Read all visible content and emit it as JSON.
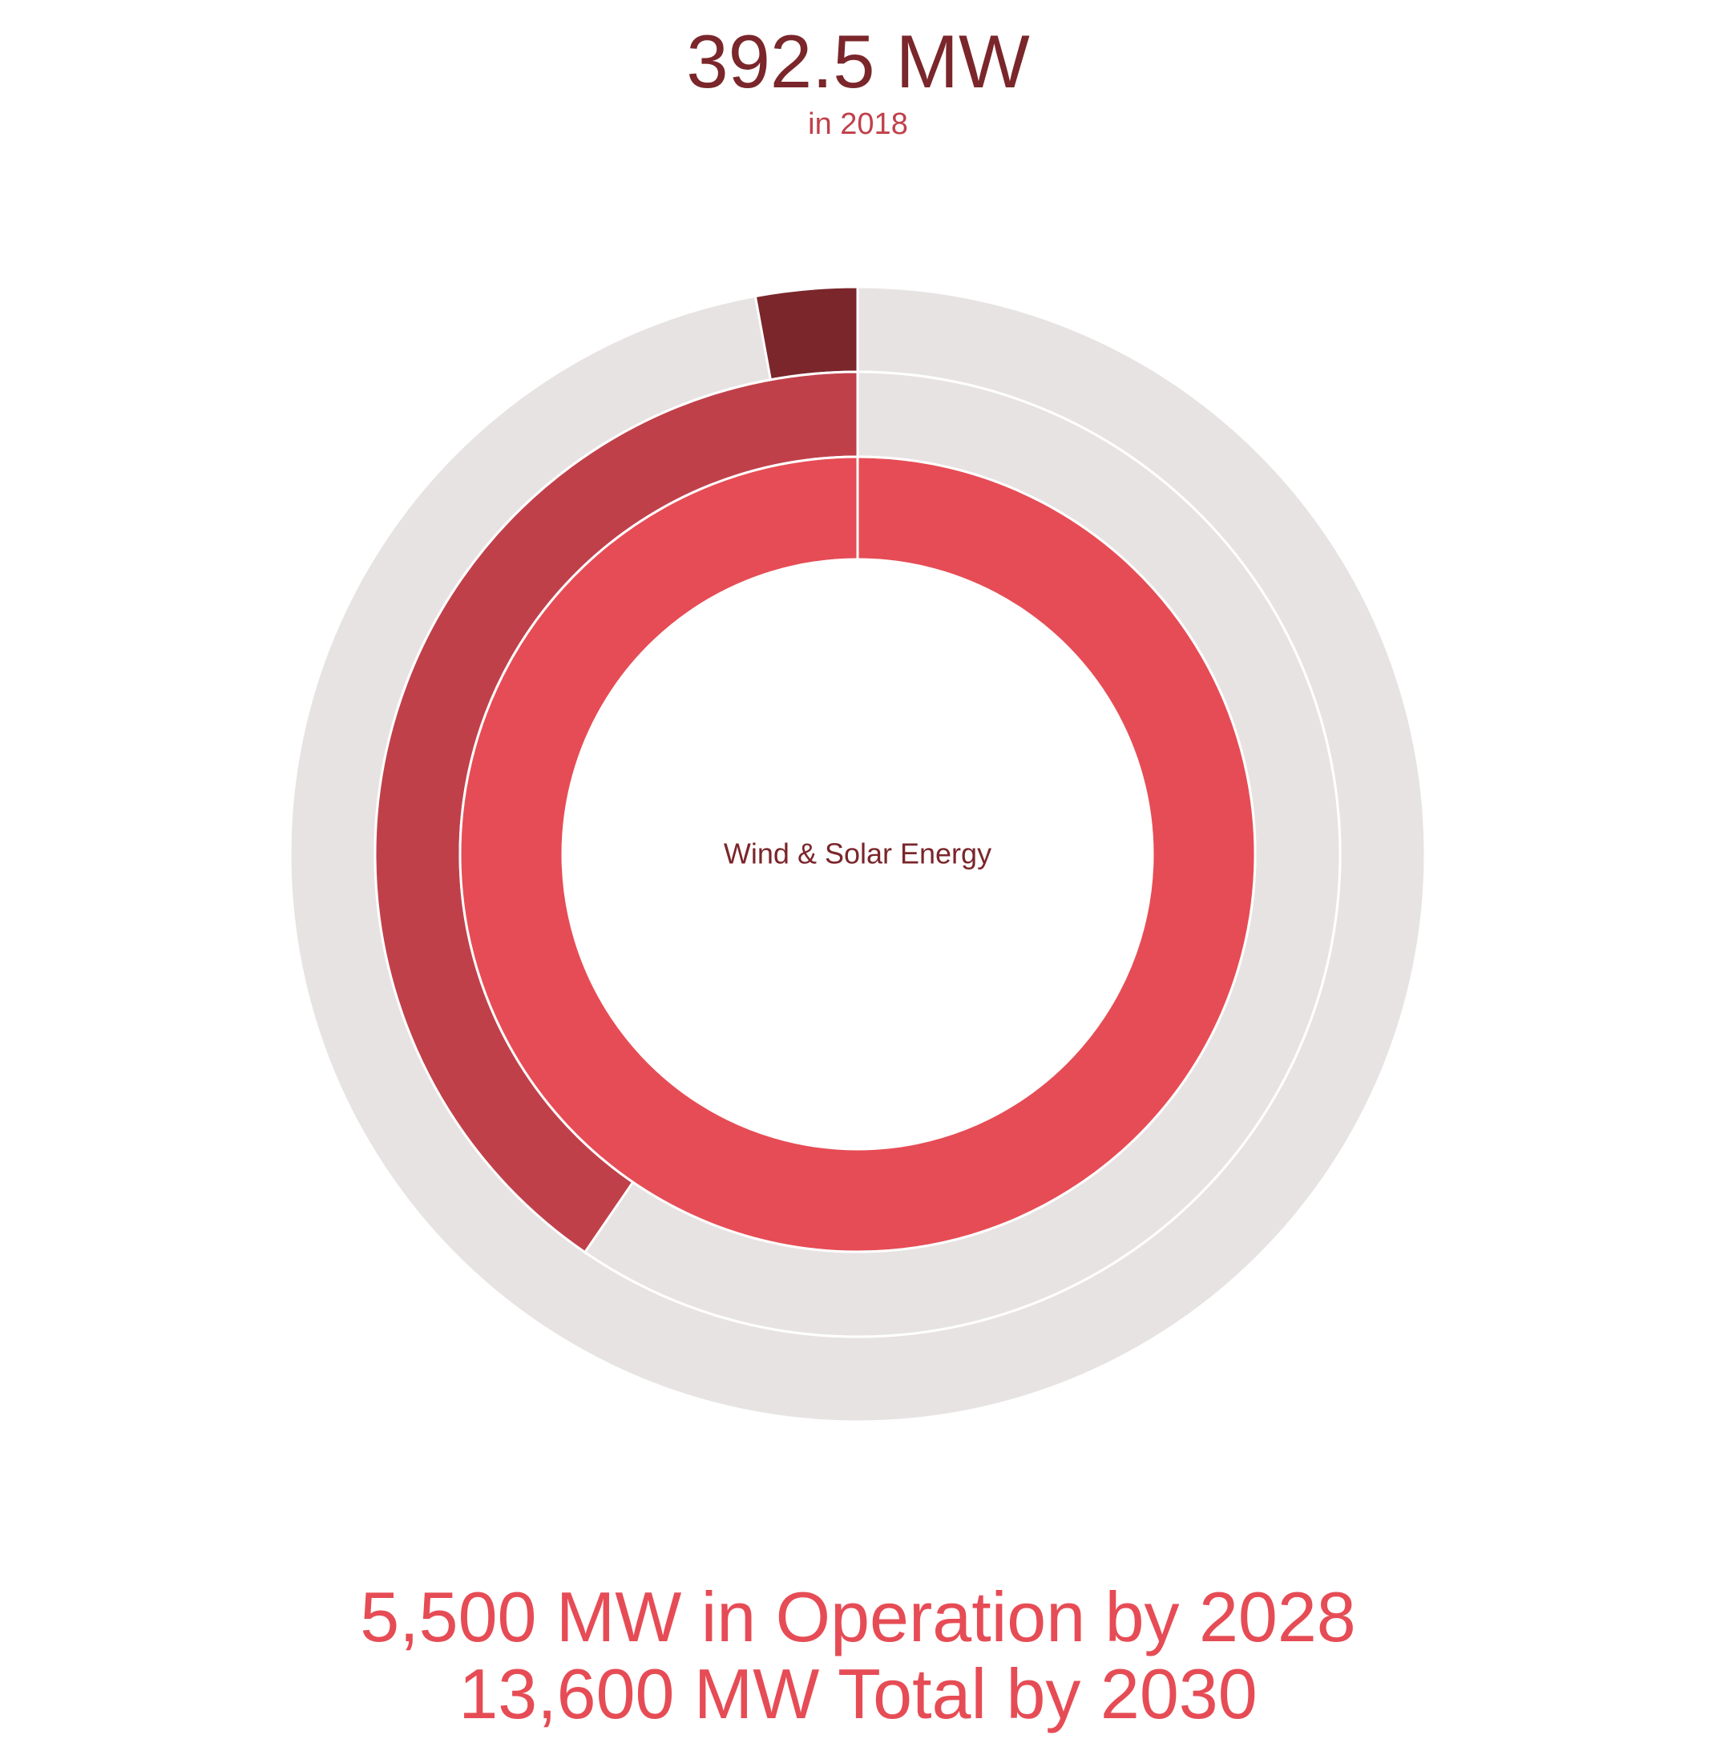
{
  "header": {
    "value": "392.5 MW",
    "subtitle": "in 2018"
  },
  "footer": {
    "line1": "5,500 MW in Operation by 2028",
    "line2": "13,600 MW Total by 2030"
  },
  "chart_data": {
    "type": "pie",
    "subtype": "radial-bar",
    "center_label": "Wind & Solar Energy",
    "max": 13600,
    "rings": [
      {
        "ring": "outer",
        "value": 392.5,
        "color": "#7a262b"
      },
      {
        "ring": "middle",
        "value": 5500,
        "color": "#c0404a"
      },
      {
        "ring": "inner",
        "value": 13600,
        "color": "#e64c55"
      }
    ],
    "track_color": "#e8e3e3"
  }
}
